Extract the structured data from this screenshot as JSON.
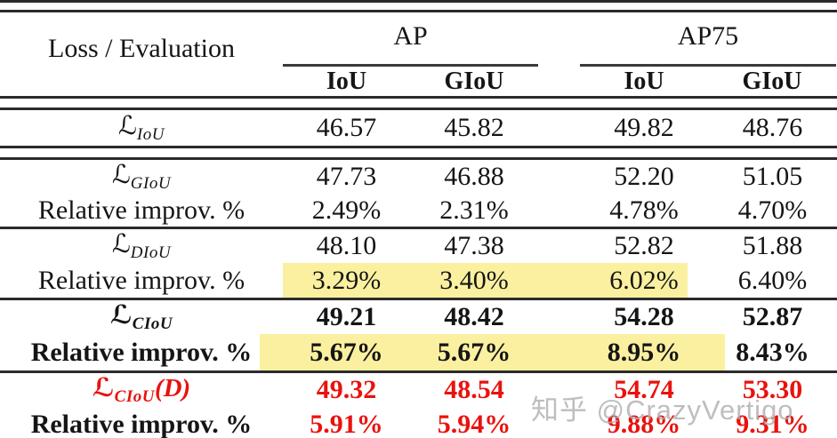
{
  "colors": {
    "accent_red": "#e9120e",
    "highlight_yellow": "#faf0a0",
    "watermark_gray": "#b0b0b0"
  },
  "watermark": {
    "text": "知乎 @CrazyVertigo"
  },
  "table": {
    "corner_label": "Loss / Evaluation",
    "col_groups": [
      {
        "label": "AP",
        "subcols": [
          "IoU",
          "GIoU"
        ]
      },
      {
        "label": "AP75",
        "subcols": [
          "IoU",
          "GIoU"
        ]
      }
    ],
    "rows": [
      {
        "script": "ℒ",
        "sub": "IoU",
        "values": [
          "46.57",
          "45.82",
          "49.82",
          "48.76"
        ]
      },
      {
        "script": "ℒ",
        "sub": "GIoU",
        "values": [
          "47.73",
          "46.88",
          "52.20",
          "51.05"
        ]
      },
      {
        "label": "Relative improv. %",
        "values": [
          "2.49%",
          "2.31%",
          "4.78%",
          "4.70%"
        ]
      },
      {
        "script": "ℒ",
        "sub": "DIoU",
        "values": [
          "48.10",
          "47.38",
          "52.82",
          "51.88"
        ]
      },
      {
        "label": "Relative improv. %",
        "values": [
          "3.29%",
          "3.40%",
          "6.02%",
          "6.40%"
        ]
      },
      {
        "script": "ℒ",
        "sub": "CIoU",
        "values": [
          "49.21",
          "48.42",
          "54.28",
          "52.87"
        ]
      },
      {
        "label": "Relative improv. %",
        "values": [
          "5.67%",
          "5.67%",
          "8.95%",
          "8.43%"
        ]
      },
      {
        "script": "ℒ",
        "sub": "CIoU",
        "suffix": "(D)",
        "values": [
          "49.32",
          "48.54",
          "54.74",
          "53.30"
        ]
      },
      {
        "label": "Relative improv. %",
        "values": [
          "5.91%",
          "5.94%",
          "9.88%",
          "9.31%"
        ]
      }
    ]
  }
}
